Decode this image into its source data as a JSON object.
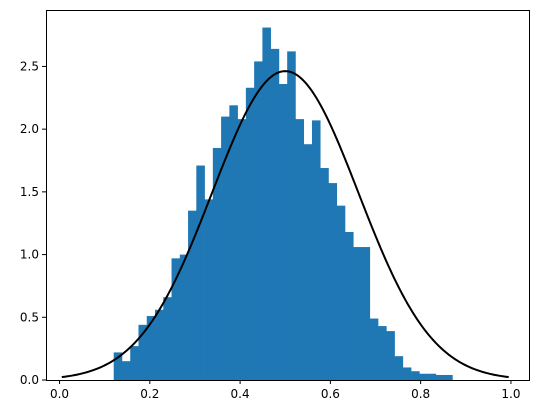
{
  "chart_data": {
    "type": "histogram",
    "title": "",
    "xlabel": "",
    "ylabel": "",
    "xlim": [
      -0.03,
      1.04
    ],
    "ylim": [
      0,
      2.95
    ],
    "grid": false,
    "legend": "none",
    "xticks": [
      {
        "value": 0.0,
        "label": "0.0"
      },
      {
        "value": 0.2,
        "label": "0.2"
      },
      {
        "value": 0.4,
        "label": "0.4"
      },
      {
        "value": 0.6,
        "label": "0.6"
      },
      {
        "value": 0.8,
        "label": "0.8"
      },
      {
        "value": 1.0,
        "label": "1.0"
      }
    ],
    "yticks": [
      {
        "value": 0.0,
        "label": "0.0"
      },
      {
        "value": 0.5,
        "label": "0.5"
      },
      {
        "value": 1.0,
        "label": "1.0"
      },
      {
        "value": 1.5,
        "label": "1.5"
      },
      {
        "value": 2.0,
        "label": "2.0"
      },
      {
        "value": 2.5,
        "label": "2.5"
      }
    ],
    "histogram": {
      "name": "",
      "color": "#1f77b4",
      "bin_edges_start": 0.12,
      "bin_width": 0.0183,
      "densities": [
        0.22,
        0.15,
        0.27,
        0.44,
        0.51,
        0.56,
        0.66,
        0.97,
        1.0,
        1.35,
        1.71,
        1.44,
        1.85,
        2.1,
        2.19,
        2.08,
        2.33,
        2.54,
        2.81,
        2.64,
        2.36,
        2.62,
        2.08,
        1.88,
        2.07,
        1.69,
        1.57,
        1.39,
        1.18,
        1.06,
        1.06,
        0.49,
        0.43,
        0.39,
        0.19,
        0.1,
        0.07,
        0.05,
        0.05,
        0.04,
        0.04
      ]
    },
    "curve": {
      "name": "",
      "color": "#000000",
      "type": "normal_pdf",
      "mu": 0.5,
      "sigma": 0.162,
      "x_range": [
        0.005,
        0.995
      ]
    }
  }
}
